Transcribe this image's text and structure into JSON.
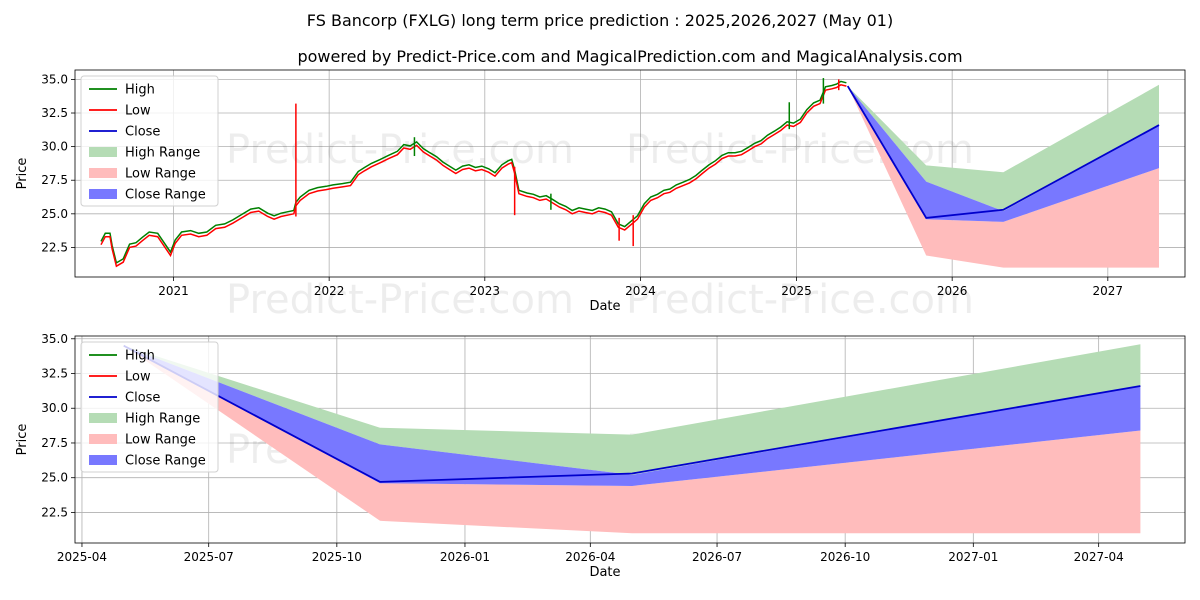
{
  "title": "FS Bancorp (FXLG) long term price prediction : 2025,2026,2027 (May 01)",
  "subtitle": "powered by Predict-Price.com and MagicalPrediction.com and MagicalAnalysis.com",
  "watermark": "Predict-Price.com",
  "colors": {
    "high": "#008000",
    "low": "#ff0000",
    "close": "#0000cc",
    "high_range": "#b5dcb5",
    "low_range": "#ffbcbc",
    "close_range": "#7878ff"
  },
  "chart_data": [
    {
      "type": "line",
      "xlabel": "Date",
      "ylabel": "Price",
      "xlim": [
        "2020-05-15",
        "2027-07-01"
      ],
      "ylim": [
        20.3,
        35.7
      ],
      "xticks": [
        {
          "date": "2021-01-01",
          "label": "2021"
        },
        {
          "date": "2022-01-01",
          "label": "2022"
        },
        {
          "date": "2023-01-01",
          "label": "2023"
        },
        {
          "date": "2024-01-01",
          "label": "2024"
        },
        {
          "date": "2025-01-01",
          "label": "2025"
        },
        {
          "date": "2026-01-01",
          "label": "2026"
        },
        {
          "date": "2027-01-01",
          "label": "2027"
        }
      ],
      "yticks": [
        22.5,
        25.0,
        27.5,
        30.0,
        32.5,
        35.0
      ],
      "ytick_labels": [
        "22.5",
        "25.0",
        "27.5",
        "30.0",
        "32.5",
        "35.0"
      ],
      "grid": true,
      "legend": {
        "placement": "upper-left",
        "entries": [
          "High",
          "Low",
          "Close",
          "High Range",
          "Low Range",
          "Close Range"
        ]
      },
      "history": [
        [
          "2020-07-15",
          22.7
        ],
        [
          "2020-07-25",
          23.3
        ],
        [
          "2020-08-05",
          23.3
        ],
        [
          "2020-08-10",
          22.4
        ],
        [
          "2020-08-20",
          21.1
        ],
        [
          "2020-09-05",
          21.4
        ],
        [
          "2020-09-20",
          22.5
        ],
        [
          "2020-10-05",
          22.6
        ],
        [
          "2020-10-20",
          23.0
        ],
        [
          "2020-11-05",
          23.4
        ],
        [
          "2020-11-25",
          23.3
        ],
        [
          "2020-12-10",
          22.6
        ],
        [
          "2020-12-25",
          21.9
        ],
        [
          "2021-01-05",
          22.8
        ],
        [
          "2021-01-20",
          23.4
        ],
        [
          "2021-02-10",
          23.5
        ],
        [
          "2021-03-01",
          23.3
        ],
        [
          "2021-03-20",
          23.4
        ],
        [
          "2021-04-10",
          23.9
        ],
        [
          "2021-05-01",
          24.0
        ],
        [
          "2021-05-20",
          24.3
        ],
        [
          "2021-06-10",
          24.7
        ],
        [
          "2021-07-01",
          25.1
        ],
        [
          "2021-07-20",
          25.2
        ],
        [
          "2021-08-10",
          24.8
        ],
        [
          "2021-08-25",
          24.6
        ],
        [
          "2021-09-10",
          24.8
        ],
        [
          "2021-09-25",
          24.9
        ],
        [
          "2021-10-10",
          25.0
        ],
        [
          "2021-10-15",
          25.6
        ],
        [
          "2021-10-25",
          26.0
        ],
        [
          "2021-11-15",
          26.5
        ],
        [
          "2021-12-05",
          26.7
        ],
        [
          "2021-12-25",
          26.8
        ],
        [
          "2022-01-10",
          26.9
        ],
        [
          "2022-02-01",
          27.0
        ],
        [
          "2022-02-20",
          27.1
        ],
        [
          "2022-03-10",
          27.9
        ],
        [
          "2022-03-25",
          28.2
        ],
        [
          "2022-04-10",
          28.5
        ],
        [
          "2022-05-01",
          28.8
        ],
        [
          "2022-05-20",
          29.1
        ],
        [
          "2022-06-10",
          29.4
        ],
        [
          "2022-06-25",
          29.9
        ],
        [
          "2022-07-10",
          29.8
        ],
        [
          "2022-07-25",
          30.1
        ],
        [
          "2022-08-10",
          29.6
        ],
        [
          "2022-08-25",
          29.3
        ],
        [
          "2022-09-10",
          29.0
        ],
        [
          "2022-09-25",
          28.6
        ],
        [
          "2022-10-10",
          28.3
        ],
        [
          "2022-10-25",
          28.0
        ],
        [
          "2022-11-10",
          28.3
        ],
        [
          "2022-11-25",
          28.4
        ],
        [
          "2022-12-10",
          28.2
        ],
        [
          "2022-12-25",
          28.3
        ],
        [
          "2023-01-10",
          28.1
        ],
        [
          "2023-01-25",
          27.8
        ],
        [
          "2023-02-10",
          28.4
        ],
        [
          "2023-02-25",
          28.7
        ],
        [
          "2023-03-05",
          28.8
        ],
        [
          "2023-03-12",
          28.0
        ],
        [
          "2023-03-22",
          26.5
        ],
        [
          "2023-04-10",
          26.3
        ],
        [
          "2023-04-25",
          26.2
        ],
        [
          "2023-05-10",
          26.0
        ],
        [
          "2023-05-25",
          26.1
        ],
        [
          "2023-06-10",
          25.8
        ],
        [
          "2023-06-25",
          25.5
        ],
        [
          "2023-07-10",
          25.3
        ],
        [
          "2023-07-25",
          25.0
        ],
        [
          "2023-08-10",
          25.2
        ],
        [
          "2023-08-25",
          25.1
        ],
        [
          "2023-09-10",
          25.0
        ],
        [
          "2023-09-25",
          25.2
        ],
        [
          "2023-10-10",
          25.1
        ],
        [
          "2023-10-25",
          24.9
        ],
        [
          "2023-11-10",
          24.0
        ],
        [
          "2023-11-25",
          23.8
        ],
        [
          "2023-12-10",
          24.2
        ],
        [
          "2023-12-25",
          24.6
        ],
        [
          "2024-01-10",
          25.5
        ],
        [
          "2024-01-25",
          26.0
        ],
        [
          "2024-02-10",
          26.2
        ],
        [
          "2024-02-25",
          26.5
        ],
        [
          "2024-03-10",
          26.6
        ],
        [
          "2024-03-25",
          26.9
        ],
        [
          "2024-04-10",
          27.1
        ],
        [
          "2024-04-25",
          27.3
        ],
        [
          "2024-05-10",
          27.6
        ],
        [
          "2024-05-25",
          28.0
        ],
        [
          "2024-06-10",
          28.4
        ],
        [
          "2024-06-25",
          28.7
        ],
        [
          "2024-07-10",
          29.1
        ],
        [
          "2024-07-25",
          29.3
        ],
        [
          "2024-08-10",
          29.3
        ],
        [
          "2024-08-25",
          29.4
        ],
        [
          "2024-09-10",
          29.7
        ],
        [
          "2024-09-25",
          30.0
        ],
        [
          "2024-10-10",
          30.2
        ],
        [
          "2024-10-25",
          30.6
        ],
        [
          "2024-11-10",
          30.9
        ],
        [
          "2024-11-25",
          31.2
        ],
        [
          "2024-12-10",
          31.6
        ],
        [
          "2024-12-25",
          31.5
        ],
        [
          "2025-01-10",
          31.8
        ],
        [
          "2025-01-25",
          32.5
        ],
        [
          "2025-02-10",
          33.0
        ],
        [
          "2025-02-25",
          33.2
        ],
        [
          "2025-03-10",
          34.2
        ],
        [
          "2025-03-25",
          34.3
        ],
        [
          "2025-04-05",
          34.4
        ],
        [
          "2025-04-15",
          34.6
        ],
        [
          "2025-04-28",
          34.5
        ]
      ],
      "spikes": [
        {
          "date": "2021-10-15",
          "low": 24.8,
          "high": 33.2,
          "color": "low"
        },
        {
          "date": "2022-07-20",
          "low": 29.3,
          "high": 30.7,
          "color": "high"
        },
        {
          "date": "2023-03-12",
          "low": 24.9,
          "high": 28.5,
          "color": "low"
        },
        {
          "date": "2023-06-05",
          "low": 25.3,
          "high": 26.5,
          "color": "high"
        },
        {
          "date": "2023-11-12",
          "low": 23.0,
          "high": 24.7,
          "color": "low"
        },
        {
          "date": "2023-12-15",
          "low": 22.6,
          "high": 24.9,
          "color": "low"
        },
        {
          "date": "2024-12-15",
          "low": 31.3,
          "high": 33.3,
          "color": "high"
        },
        {
          "date": "2025-03-05",
          "low": 33.2,
          "high": 35.1,
          "color": "high"
        },
        {
          "date": "2025-04-10",
          "low": 34.2,
          "high": 35.0,
          "color": "low"
        }
      ],
      "forecast": {
        "dates": [
          "2025-05-01",
          "2025-11-01",
          "2026-05-01",
          "2027-05-01"
        ],
        "close": [
          34.5,
          24.7,
          25.3,
          31.6
        ],
        "close_upper": [
          34.5,
          27.4,
          25.2,
          31.6
        ],
        "close_lower": [
          34.5,
          24.6,
          24.4,
          28.4
        ],
        "high_upper": [
          34.5,
          28.6,
          28.1,
          34.6
        ],
        "low_lower": [
          34.5,
          21.9,
          21.0,
          21.0
        ]
      }
    },
    {
      "type": "line",
      "xlabel": "Date",
      "ylabel": "Price",
      "xlim": [
        "2025-03-27",
        "2027-06-02"
      ],
      "ylim": [
        20.3,
        35.2
      ],
      "xticks": [
        {
          "date": "2025-04-01",
          "label": "2025-04"
        },
        {
          "date": "2025-07-01",
          "label": "2025-07"
        },
        {
          "date": "2025-10-01",
          "label": "2025-10"
        },
        {
          "date": "2026-01-01",
          "label": "2026-01"
        },
        {
          "date": "2026-04-01",
          "label": "2026-04"
        },
        {
          "date": "2026-07-01",
          "label": "2026-07"
        },
        {
          "date": "2026-10-01",
          "label": "2026-10"
        },
        {
          "date": "2027-01-01",
          "label": "2027-01"
        },
        {
          "date": "2027-04-01",
          "label": "2027-04"
        }
      ],
      "yticks": [
        22.5,
        25.0,
        27.5,
        30.0,
        32.5,
        35.0
      ],
      "ytick_labels": [
        "22.5",
        "25.0",
        "27.5",
        "30.0",
        "32.5",
        "35.0"
      ],
      "grid": true,
      "legend": {
        "placement": "upper-left",
        "entries": [
          "High",
          "Low",
          "Close",
          "High Range",
          "Low Range",
          "Close Range"
        ]
      },
      "forecast": {
        "dates": [
          "2025-05-01",
          "2025-11-01",
          "2026-05-01",
          "2027-05-01"
        ],
        "close": [
          34.5,
          24.7,
          25.3,
          31.6
        ],
        "close_upper": [
          34.5,
          27.4,
          25.2,
          31.6
        ],
        "close_lower": [
          34.5,
          24.6,
          24.4,
          28.4
        ],
        "high_upper": [
          34.5,
          28.6,
          28.1,
          34.6
        ],
        "low_lower": [
          34.5,
          21.9,
          21.0,
          21.0
        ]
      }
    }
  ]
}
